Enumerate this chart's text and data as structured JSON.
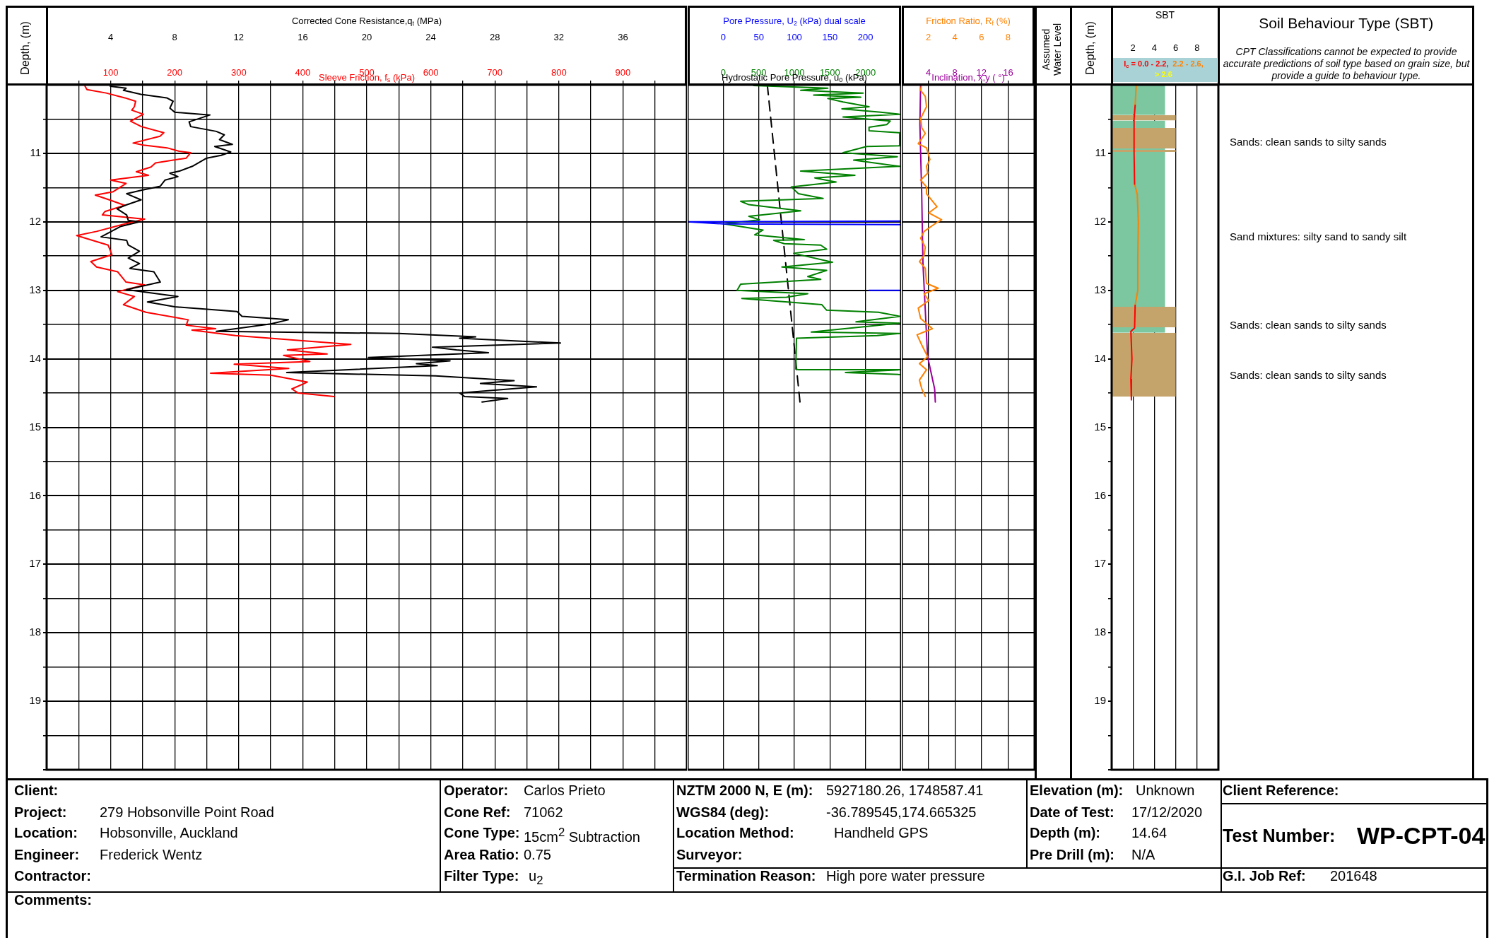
{
  "chart_data": [
    {
      "type": "line",
      "x2label": "Corrected Cone Resistance,q$_{t}$ (MPa)",
      "xlabel": "Sleeve Friction, f$_{s}$ (kPa)",
      "ylabel": "Depth, (m)",
      "x2lim": [
        0,
        40
      ],
      "x2ticks": [
        4,
        8,
        12,
        16,
        20,
        24,
        28,
        32,
        36
      ],
      "xlim": [
        0,
        1000
      ],
      "xticks": [
        {
          "value": 50,
          "label": null
        },
        100,
        {
          "value": 150,
          "label": null
        },
        200,
        {
          "value": 250,
          "label": null
        },
        300,
        {
          "value": 350,
          "label": null
        },
        400,
        {
          "value": 450,
          "label": null
        },
        500,
        {
          "value": 550,
          "label": null
        },
        600,
        {
          "value": 650,
          "label": null
        },
        700,
        {
          "value": 750,
          "label": null
        },
        800,
        {
          "value": 850,
          "label": null
        },
        900,
        {
          "value": 950,
          "label": null
        }
      ],
      "ylim": [
        20,
        10
      ],
      "yticks": [
        {
          "value": 10,
          "label": null
        },
        {
          "value": 10.5,
          "label": null
        },
        11,
        {
          "value": 11.5,
          "label": null
        },
        12,
        {
          "value": 12.5,
          "label": null
        },
        13,
        {
          "value": 13.5,
          "label": null
        },
        14,
        {
          "value": 14.5,
          "label": null
        },
        15,
        {
          "value": 15.5,
          "label": null
        },
        16,
        {
          "value": 16.5,
          "label": null
        },
        17,
        {
          "value": 17.5,
          "label": null
        },
        18,
        {
          "value": 18.5,
          "label": null
        },
        19,
        {
          "value": 19.5,
          "label": null
        },
        {
          "value": 20,
          "label": null
        }
      ],
      "grid": true,
      "series": [
        {
          "color": "#000000",
          "axis": "x2",
          "x": [
            3.97,
            4.96,
            4.8,
            5.9,
            7.5,
            7.9,
            7.7,
            8.0,
            10.2,
            8.9,
            9.0,
            10.6,
            11.1,
            10.8,
            11.6,
            10.5,
            11.5,
            10.9,
            10.0,
            9.1,
            8.3,
            7.7,
            8.2,
            7.4,
            7.1,
            5.9,
            5.0,
            5.9,
            4.9,
            4.4,
            5.0,
            5.1,
            5.8,
            4.6,
            3.4,
            5.0,
            5.1,
            5.8,
            5.1,
            5.8,
            5.2,
            6.7,
            7.1,
            5.0,
            8.2,
            6.3,
            8.0,
            11.9,
            12.2,
            15.1,
            14.0,
            10.6,
            22.0,
            26.8,
            25.8,
            32.1,
            24.1,
            25.6,
            27.6,
            20.1,
            25.2,
            23.1,
            24.4,
            15.0,
            24.3,
            29.2,
            27.1,
            30.6,
            25.8,
            26.1,
            28.8,
            27.2
          ],
          "values": [
            10.02,
            10.05,
            10.08,
            10.14,
            10.19,
            10.24,
            10.34,
            10.4,
            10.44,
            10.54,
            10.61,
            10.68,
            10.73,
            10.8,
            10.87,
            10.9,
            10.98,
            11.03,
            11.07,
            11.19,
            11.26,
            11.29,
            11.34,
            11.39,
            11.48,
            11.54,
            11.59,
            11.68,
            11.76,
            11.81,
            11.9,
            11.98,
            12.0,
            12.07,
            12.22,
            12.27,
            12.34,
            12.43,
            12.53,
            12.61,
            12.68,
            12.73,
            12.88,
            12.99,
            13.09,
            13.17,
            13.24,
            13.31,
            13.38,
            13.43,
            13.49,
            13.6,
            13.63,
            13.68,
            13.7,
            13.77,
            13.83,
            13.87,
            13.91,
            13.98,
            14.03,
            14.07,
            14.1,
            14.2,
            14.25,
            14.32,
            14.36,
            14.41,
            14.5,
            14.55,
            14.58,
            14.63
          ]
        },
        {
          "color": "#ff0000",
          "x": [
            60,
            63,
            93,
            122,
            139,
            137,
            133,
            151,
            131,
            148,
            183,
            177,
            135,
            151,
            188,
            207,
            225,
            218,
            170,
            163,
            140,
            159,
            100,
            124,
            104,
            76,
            98,
            122,
            91,
            87,
            153,
            118,
            78,
            47,
            96,
            102,
            69,
            78,
            111,
            124,
            153,
            111,
            137,
            120,
            155,
            221,
            218,
            264,
            227,
            295,
            475,
            376,
            438,
            370,
            411,
            293,
            378,
            256,
            350,
            407,
            383,
            393,
            449
          ],
          "values": [
            10.02,
            10.07,
            10.12,
            10.19,
            10.24,
            10.32,
            10.37,
            10.43,
            10.53,
            10.61,
            10.7,
            10.75,
            10.85,
            10.88,
            10.92,
            10.97,
            10.99,
            11.07,
            11.14,
            11.2,
            11.27,
            11.32,
            11.39,
            11.44,
            11.56,
            11.61,
            11.68,
            11.76,
            11.85,
            11.9,
            11.96,
            12.04,
            12.14,
            12.2,
            12.34,
            12.48,
            12.58,
            12.66,
            12.73,
            12.88,
            12.92,
            13.02,
            13.09,
            13.21,
            13.32,
            13.43,
            13.51,
            13.56,
            13.58,
            13.66,
            13.79,
            13.87,
            13.93,
            13.95,
            14.04,
            14.08,
            14.14,
            14.21,
            14.24,
            14.34,
            14.44,
            14.5,
            14.55
          ]
        }
      ]
    },
    {
      "type": "line",
      "x2label": "Pore Pressure, U$_{2}$ (kPa) dual scale",
      "xlabel": "Hydrostatic Pore Pressure, u$_{0}$ (kPa)",
      "x2lim": [
        -50,
        250
      ],
      "x2ticks": [
        0,
        50,
        100,
        150,
        200
      ],
      "xlim": [
        -500,
        2500
      ],
      "xticks": [
        0,
        500,
        1000,
        1500,
        2000
      ],
      "ylim": [
        20,
        10
      ],
      "yticks": [
        {
          "value": 10,
          "label": null
        },
        {
          "value": 10.5,
          "label": null
        },
        {
          "value": 11,
          "label": null
        },
        {
          "value": 11.5,
          "label": null
        },
        {
          "value": 12,
          "label": null
        },
        {
          "value": 12.5,
          "label": null
        },
        {
          "value": 13,
          "label": null
        },
        {
          "value": 13.5,
          "label": null
        },
        {
          "value": 14,
          "label": null
        },
        {
          "value": 14.5,
          "label": null
        },
        {
          "value": 15,
          "label": null
        },
        {
          "value": 15.5,
          "label": null
        },
        {
          "value": 16,
          "label": null
        },
        {
          "value": 16.5,
          "label": null
        },
        {
          "value": 17,
          "label": null
        },
        {
          "value": 17.5,
          "label": null
        },
        {
          "value": 18,
          "label": null
        },
        {
          "value": 18.5,
          "label": null
        },
        {
          "value": 19,
          "label": null
        },
        {
          "value": 19.5,
          "label": null
        },
        {
          "value": 20,
          "label": null
        }
      ],
      "tick_labels": "x",
      "grid": true,
      "series": [
        {
          "color": "#0000ff",
          "axis": "x2",
          "x": [
            249,
            -50,
            0,
            249,
            null,
            205,
            249
          ],
          "values": [
            11.99,
            12.0,
            12.03,
            12.04,
            null,
            13.0,
            13.0
          ]
        },
        {
          "color": "#008000",
          "x": [
            427,
            1470,
            1089,
            1967,
            1271,
            1934,
            1470,
            1685,
            2050,
            1669,
            2215,
            2480,
            1685,
            2348,
            2298,
            2050,
            2050,
            2480,
            2480,
            2016,
            1685,
            2447,
            1834,
            2480,
            1089,
            1851,
            1288,
            1586,
            957,
            1057,
            1404,
            245,
            361,
            1089,
            361,
            510,
            13,
            560,
            444,
            1139,
            709,
            858,
            1371,
            1454,
            990,
            1536,
            825,
            1454,
            1189,
            1371,
            245,
            195,
            1189,
            891,
            262,
            1387,
            1454,
            2182,
            2480,
            1867,
            2480,
            1238,
            2480,
            2165,
            1030,
            1020,
            1057,
            2480,
            1718,
            2480
          ],
          "values": [
            10.01,
            10.05,
            10.08,
            10.12,
            10.15,
            10.18,
            10.2,
            10.25,
            10.32,
            10.35,
            10.4,
            10.43,
            10.47,
            10.53,
            10.58,
            10.62,
            10.67,
            10.7,
            10.89,
            10.9,
            10.99,
            11.05,
            11.1,
            11.19,
            11.26,
            11.32,
            11.36,
            11.42,
            11.49,
            11.59,
            11.66,
            11.7,
            11.75,
            11.84,
            11.92,
            11.97,
            12.03,
            12.12,
            12.19,
            12.26,
            12.27,
            12.32,
            12.34,
            12.4,
            12.46,
            12.59,
            12.66,
            12.71,
            12.8,
            12.84,
            12.91,
            13.0,
            13.05,
            13.1,
            13.12,
            13.21,
            13.29,
            13.32,
            13.38,
            13.46,
            13.48,
            13.61,
            13.63,
            13.66,
            13.7,
            14.15,
            14.16,
            14.16,
            14.2,
            14.23
          ]
        },
        {
          "color": "#000000",
          "line_style": "dashed",
          "x": [
            620,
            1080
          ],
          "values": [
            10.0,
            14.64
          ]
        }
      ]
    },
    {
      "type": "line",
      "x2label": "Friction Ratio, R$_{f}$ (%)",
      "xlabel": "Inclination, x,y ( °)",
      "x2lim": [
        0,
        10
      ],
      "x2ticks": [
        2,
        4,
        6,
        8
      ],
      "xlim": [
        0,
        20
      ],
      "xticks": [
        4,
        8,
        12,
        16
      ],
      "ylim": [
        20,
        10
      ],
      "yticks": [
        {
          "value": 10,
          "label": null
        },
        {
          "value": 10.5,
          "label": null
        },
        {
          "value": 11,
          "label": null
        },
        {
          "value": 11.5,
          "label": null
        },
        {
          "value": 12,
          "label": null
        },
        {
          "value": 12.5,
          "label": null
        },
        {
          "value": 13,
          "label": null
        },
        {
          "value": 13.5,
          "label": null
        },
        {
          "value": 14,
          "label": null
        },
        {
          "value": 14.5,
          "label": null
        },
        {
          "value": 15,
          "label": null
        },
        {
          "value": 15.5,
          "label": null
        },
        {
          "value": 16,
          "label": null
        },
        {
          "value": 16.5,
          "label": null
        },
        {
          "value": 17,
          "label": null
        },
        {
          "value": 17.5,
          "label": null
        },
        {
          "value": 18,
          "label": null
        },
        {
          "value": 18.5,
          "label": null
        },
        {
          "value": 19,
          "label": null
        },
        {
          "value": 19.5,
          "label": null
        },
        {
          "value": 20,
          "label": null
        }
      ],
      "tick_labels": "x",
      "grid": true,
      "series": [
        {
          "color": "#ff8000",
          "axis": "x2",
          "x": [
            1.47,
            1.42,
            1.77,
            1.86,
            1.42,
            1.51,
            1.77,
            1.24,
            1.86,
            2.12,
            1.86,
            1.95,
            1.42,
            1.86,
            1.86,
            2.65,
            2.03,
            3.0,
            2.56,
            1.68,
            1.42,
            1.77,
            1.68,
            1.33,
            1.77,
            1.86,
            2.74,
            1.68,
            2.03,
            1.24,
            1.42,
            2.3,
            1.15,
            1.51,
            1.95,
            1.33,
            1.86,
            1.33,
            1.51,
            1.77
          ],
          "values": [
            10.02,
            10.08,
            10.17,
            10.32,
            10.49,
            10.63,
            10.71,
            10.86,
            10.92,
            11.09,
            11.19,
            11.29,
            11.39,
            11.49,
            11.59,
            11.78,
            11.87,
            11.97,
            12.02,
            12.14,
            12.24,
            12.37,
            12.49,
            12.58,
            12.68,
            12.9,
            12.97,
            13.05,
            13.15,
            13.26,
            13.41,
            13.56,
            13.65,
            13.8,
            13.97,
            14.07,
            14.16,
            14.31,
            14.44,
            14.55
          ]
        },
        {
          "color": "#990099",
          "x": [
            2.83,
            2.73,
            3.0,
            3.19,
            3.54,
            3.89,
            4.95,
            5.05
          ],
          "values": [
            10.02,
            10.58,
            11.59,
            12.61,
            13.29,
            13.97,
            14.44,
            14.63
          ]
        }
      ]
    },
    {
      "type": "line",
      "title": "SBT",
      "ylabel": "Depth, (m)",
      "xlim": [
        0,
        10
      ],
      "xticks": [
        2,
        4,
        6,
        8
      ],
      "ylim": [
        20,
        10
      ],
      "yticks": [
        {
          "value": 10,
          "label": null
        },
        {
          "value": 10.5,
          "label": null
        },
        11,
        {
          "value": 11.5,
          "label": null
        },
        12,
        {
          "value": 12.5,
          "label": null
        },
        13,
        {
          "value": 13.5,
          "label": null
        },
        14,
        {
          "value": 14.5,
          "label": null
        },
        15,
        {
          "value": 15.5,
          "label": null
        },
        16,
        {
          "value": 16.5,
          "label": null
        },
        17,
        {
          "value": 17.5,
          "label": null
        },
        18,
        {
          "value": 18.5,
          "label": null
        },
        19,
        {
          "value": 19.5,
          "label": null
        },
        {
          "value": 20,
          "label": null
        }
      ],
      "grid": "x",
      "legend": "top",
      "series": [
        {
          "type": "area",
          "color": "#7cc6a0",
          "x": [
            0,
            5,
            5,
            0,
            null,
            0,
            5,
            5,
            0,
            null,
            0,
            5,
            5,
            0,
            null,
            0,
            5,
            5,
            0,
            null,
            0,
            5,
            5,
            0
          ],
          "values": [
            10.0,
            10.0,
            10.44,
            10.44,
            null,
            10.52,
            10.52,
            10.63,
            10.63,
            null,
            10.93,
            10.93,
            10.95,
            10.95,
            null,
            10.98,
            10.98,
            13.24,
            13.24,
            null,
            13.54,
            13.54,
            13.62,
            13.62
          ]
        },
        {
          "type": "area",
          "color": "#c4a46b",
          "x": [
            0,
            6,
            6,
            0,
            null,
            0,
            6,
            6,
            0,
            null,
            0,
            6,
            6,
            0,
            null,
            0,
            6,
            6,
            0,
            null,
            0,
            6,
            6,
            0
          ],
          "values": [
            10.44,
            10.44,
            10.52,
            10.52,
            null,
            10.63,
            10.63,
            10.93,
            10.93,
            null,
            10.95,
            10.95,
            10.98,
            10.98,
            null,
            13.24,
            13.24,
            13.54,
            13.54,
            null,
            13.62,
            13.62,
            14.55,
            14.55
          ]
        },
        {
          "name": "I$_{c}$ = 0.0 - 2.2,",
          "color": "#ff0000",
          "x": [
            2.2,
            2.1,
            2.1,
            2.15,
            null,
            2.2,
            2.15,
            1.8,
            1.9,
            1.8,
            1.85
          ],
          "values": [
            10.3,
            10.5,
            11.0,
            11.45,
            null,
            13.22,
            13.55,
            13.6,
            14.0,
            14.3,
            14.6
          ]
        },
        {
          "name": "2.2 - 2.6,",
          "color": "#ff8000",
          "x": [
            2.3,
            2.2,
            null,
            2.15,
            2.4,
            2.5,
            2.45,
            2.45,
            2.2
          ],
          "values": [
            10.0,
            10.3,
            null,
            11.45,
            11.6,
            12.0,
            12.5,
            13.0,
            13.22
          ]
        },
        {
          "name": "> 2.6",
          "color": "#ffff00"
        }
      ],
      "annotations": [
        "Assumed Water Level",
        "Soil Behaviour Type (SBT)",
        "CPT Classifications cannot be expected to provide accurate predictions of soil type based on grain size, but provide a guide to behaviour type.",
        "Sands: clean sands to silty sands",
        "Sand mixtures: silty sand to sandy silt",
        "Sands: clean sands to silty sands",
        "Sands: clean sands to silty sands"
      ]
    },
    {
      "type": "other",
      "annotations": [
        "Client:",
        "Project:",
        "279 Hobsonville Point Road",
        "Location:",
        "Hobsonville, Auckland",
        "Engineer:",
        "Frederick Wentz",
        "Contractor:",
        "Operator:",
        "Carlos Prieto",
        "Cone Ref:",
        "71062",
        "Cone Type:",
        "15cm$^{2}$ Subtraction",
        "Area Ratio:",
        "0.75",
        "Filter Type:",
        "u$_{2}$",
        "NZTM 2000 N, E (m):",
        "5927180.26, 1748587.41",
        "WGS84 (deg):",
        "-36.789545,174.665325",
        "Location Method:",
        "Handheld GPS",
        "Surveyor:",
        "Termination Reason:",
        "High pore water pressure",
        "Elevation (m):",
        "Unknown",
        "Date of Test:",
        "17/12/2020",
        "Depth (m):",
        "14.64",
        "Pre Drill (m):",
        "N/A",
        "Client Reference:",
        "Test Number:",
        "WP-CPT-04",
        "G.I. Job Ref:",
        "201648",
        "Comments:"
      ]
    }
  ]
}
